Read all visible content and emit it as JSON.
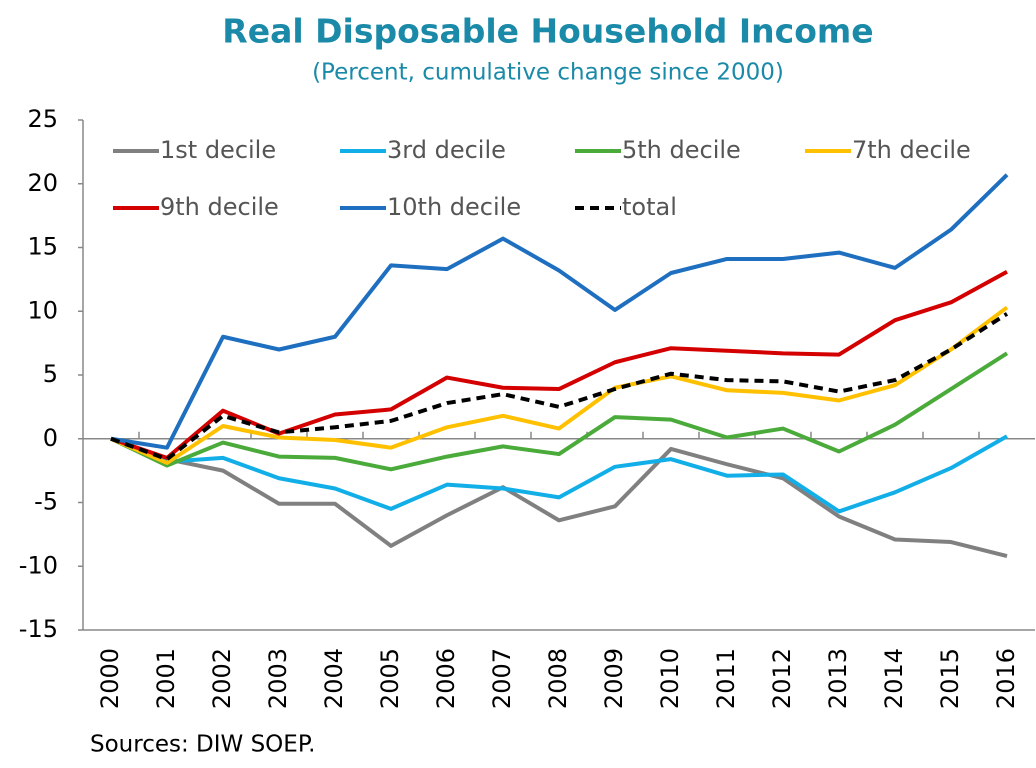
{
  "chart_data": {
    "type": "line",
    "title": "Real Disposable Household Income",
    "subtitle": "(Percent, cumulative change since 2000)",
    "source": "Sources: DIW SOEP.",
    "categories": [
      "2000",
      "2001",
      "2002",
      "2003",
      "2004",
      "2005",
      "2006",
      "2007",
      "2008",
      "2009",
      "2010",
      "2011",
      "2012",
      "2013",
      "2014",
      "2015",
      "2016"
    ],
    "ylim": [
      -15,
      25
    ],
    "yticks": [
      -15,
      -10,
      -5,
      0,
      5,
      10,
      15,
      20,
      25
    ],
    "grid": false,
    "legend": "upper left",
    "series": [
      {
        "name": "1st decile",
        "color": "#808080",
        "values": [
          0,
          -1.6,
          -2.5,
          -5.1,
          -5.1,
          -8.4,
          -6,
          -3.8,
          -6.4,
          -5.3,
          -0.8,
          -2,
          -3.1,
          -6.1,
          -7.9,
          -8.1,
          -9.2
        ]
      },
      {
        "name": "3rd decile",
        "color": "#12aee8",
        "values": [
          0,
          -1.8,
          -1.5,
          -3.1,
          -3.9,
          -5.5,
          -3.6,
          -3.9,
          -4.6,
          -2.2,
          -1.6,
          -2.9,
          -2.8,
          -5.7,
          -4.2,
          -2.3,
          0.2
        ]
      },
      {
        "name": "5th decile",
        "color": "#4aaa3a",
        "values": [
          0,
          -2.1,
          -0.3,
          -1.4,
          -1.5,
          -2.4,
          -1.4,
          -0.6,
          -1.2,
          1.7,
          1.5,
          0.1,
          0.8,
          -1,
          1.1,
          3.9,
          6.7
        ]
      },
      {
        "name": "7th decile",
        "color": "#ffc000",
        "values": [
          0,
          -1.9,
          1,
          0.1,
          -0.1,
          -0.7,
          0.9,
          1.8,
          0.8,
          4,
          4.9,
          3.8,
          3.6,
          3,
          4.2,
          7,
          10.3
        ]
      },
      {
        "name": "9th decile",
        "color": "#d40000",
        "values": [
          0,
          -1.5,
          2.2,
          0.4,
          1.9,
          2.3,
          4.8,
          4,
          3.9,
          6,
          7.1,
          6.9,
          6.7,
          6.6,
          9.3,
          10.7,
          13.1
        ]
      },
      {
        "name": "10th decile",
        "color": "#1f6fc0",
        "values": [
          0,
          -0.7,
          8,
          7,
          8,
          13.6,
          13.3,
          15.7,
          13.2,
          10.1,
          13,
          14.1,
          14.1,
          14.6,
          13.4,
          16.4,
          20.7
        ]
      },
      {
        "name": "total",
        "color": "#000000",
        "dashed": true,
        "values": [
          0,
          -1.6,
          1.8,
          0.5,
          0.9,
          1.4,
          2.8,
          3.5,
          2.5,
          3.9,
          5.1,
          4.6,
          4.5,
          3.7,
          4.6,
          7,
          9.8
        ]
      }
    ]
  }
}
